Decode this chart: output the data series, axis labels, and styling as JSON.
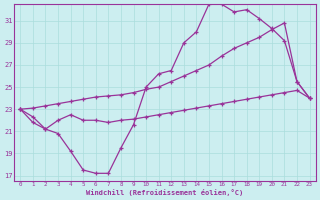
{
  "xlabel": "Windchill (Refroidissement éolien,°C)",
  "xlim": [
    -0.5,
    23.5
  ],
  "ylim": [
    16.5,
    32.5
  ],
  "yticks": [
    17,
    19,
    21,
    23,
    25,
    27,
    29,
    31
  ],
  "xticks": [
    0,
    1,
    2,
    3,
    4,
    5,
    6,
    7,
    8,
    9,
    10,
    11,
    12,
    13,
    14,
    15,
    16,
    17,
    18,
    19,
    20,
    21,
    22,
    23
  ],
  "background_color": "#cceef0",
  "grid_color": "#aadddd",
  "line_color": "#993399",
  "line1_x": [
    0,
    1,
    2,
    3,
    4,
    5,
    6,
    7,
    8,
    9,
    10,
    11,
    12,
    13,
    14,
    15,
    16,
    17,
    18,
    19,
    20,
    21,
    22,
    23
  ],
  "line1_y": [
    23.0,
    22.3,
    21.2,
    20.8,
    19.2,
    17.5,
    17.2,
    17.2,
    19.5,
    21.6,
    25.0,
    26.2,
    26.5,
    29.0,
    30.0,
    32.5,
    32.5,
    31.8,
    32.0,
    31.2,
    30.3,
    29.2,
    25.5,
    24.0
  ],
  "line2_x": [
    0,
    1,
    2,
    3,
    4,
    5,
    6,
    7,
    8,
    9,
    10,
    11,
    12,
    13,
    14,
    15,
    16,
    17,
    18,
    19,
    20,
    21,
    22,
    23
  ],
  "line2_y": [
    23.0,
    23.1,
    23.3,
    23.5,
    23.7,
    23.9,
    24.1,
    24.2,
    24.3,
    24.5,
    24.8,
    25.0,
    25.5,
    26.0,
    26.5,
    27.0,
    27.8,
    28.5,
    29.0,
    29.5,
    30.2,
    30.8,
    25.5,
    24.0
  ],
  "line3_x": [
    0,
    1,
    2,
    3,
    4,
    5,
    6,
    7,
    8,
    9,
    10,
    11,
    12,
    13,
    14,
    15,
    16,
    17,
    18,
    19,
    20,
    21,
    22,
    23
  ],
  "line3_y": [
    23.0,
    21.8,
    21.2,
    22.0,
    22.5,
    22.0,
    22.0,
    21.8,
    22.0,
    22.1,
    22.3,
    22.5,
    22.7,
    22.9,
    23.1,
    23.3,
    23.5,
    23.7,
    23.9,
    24.1,
    24.3,
    24.5,
    24.7,
    24.0
  ]
}
